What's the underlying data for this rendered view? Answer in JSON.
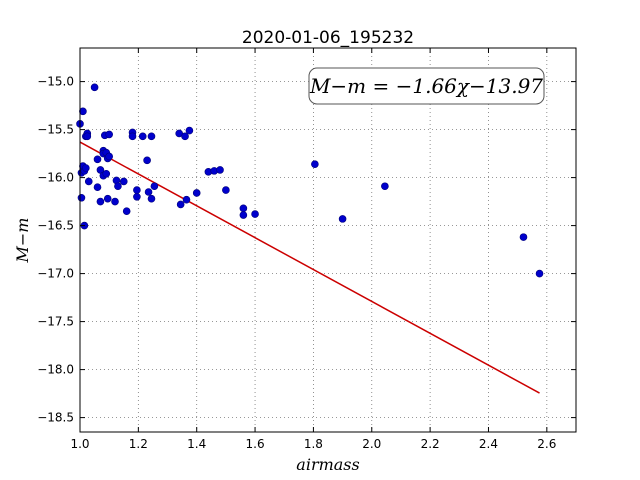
{
  "chart_data": {
    "type": "scatter",
    "title": "2020-01-06_195232",
    "xlabel": "airmass",
    "ylabel": "M−m",
    "xlim": [
      1.0,
      2.7
    ],
    "ylim": [
      -18.65,
      -14.65
    ],
    "x_ticks": [
      1.0,
      1.2,
      1.4,
      1.6,
      1.8,
      2.0,
      2.2,
      2.4,
      2.6
    ],
    "x_tick_labels": [
      "1.0",
      "1.2",
      "1.4",
      "1.6",
      "1.8",
      "2.0",
      "2.2",
      "2.4",
      "2.6"
    ],
    "y_ticks": [
      -15.0,
      -15.5,
      -16.0,
      -16.5,
      -17.0,
      -17.5,
      -18.0,
      -18.5
    ],
    "y_tick_labels": [
      "−15.0",
      "−15.5",
      "−16.0",
      "−16.5",
      "−17.0",
      "−17.5",
      "−18.0",
      "−18.5"
    ],
    "grid": true,
    "point_color": "#0000cc",
    "line_color": "#cc0000",
    "annotation": "M−m = −1.66χ−13.97",
    "annotation_position": "top-right",
    "fit": {
      "slope": -1.66,
      "intercept": -13.97,
      "x_range": [
        1.0,
        2.575
      ]
    },
    "points": [
      [
        1.0,
        -15.44
      ],
      [
        1.005,
        -15.95
      ],
      [
        1.005,
        -16.21
      ],
      [
        1.01,
        -15.31
      ],
      [
        1.01,
        -15.88
      ],
      [
        1.015,
        -15.93
      ],
      [
        1.015,
        -16.5
      ],
      [
        1.02,
        -15.57
      ],
      [
        1.02,
        -15.9
      ],
      [
        1.025,
        -15.54
      ],
      [
        1.025,
        -15.57
      ],
      [
        1.03,
        -16.04
      ],
      [
        1.05,
        -15.06
      ],
      [
        1.06,
        -15.81
      ],
      [
        1.06,
        -16.1
      ],
      [
        1.07,
        -15.92
      ],
      [
        1.07,
        -16.25
      ],
      [
        1.08,
        -15.72
      ],
      [
        1.08,
        -15.75
      ],
      [
        1.08,
        -15.98
      ],
      [
        1.085,
        -15.56
      ],
      [
        1.09,
        -15.74
      ],
      [
        1.09,
        -15.96
      ],
      [
        1.095,
        -15.8
      ],
      [
        1.095,
        -16.22
      ],
      [
        1.1,
        -15.55
      ],
      [
        1.1,
        -15.78
      ],
      [
        1.12,
        -16.25
      ],
      [
        1.125,
        -16.03
      ],
      [
        1.13,
        -16.09
      ],
      [
        1.15,
        -16.04
      ],
      [
        1.16,
        -16.35
      ],
      [
        1.18,
        -15.53
      ],
      [
        1.18,
        -15.57
      ],
      [
        1.195,
        -16.13
      ],
      [
        1.195,
        -16.2
      ],
      [
        1.215,
        -15.57
      ],
      [
        1.23,
        -15.82
      ],
      [
        1.235,
        -16.15
      ],
      [
        1.245,
        -15.57
      ],
      [
        1.245,
        -16.22
      ],
      [
        1.255,
        -16.09
      ],
      [
        1.34,
        -15.54
      ],
      [
        1.345,
        -16.28
      ],
      [
        1.36,
        -15.57
      ],
      [
        1.365,
        -16.23
      ],
      [
        1.375,
        -15.51
      ],
      [
        1.4,
        -16.16
      ],
      [
        1.44,
        -15.94
      ],
      [
        1.46,
        -15.93
      ],
      [
        1.48,
        -15.92
      ],
      [
        1.5,
        -16.13
      ],
      [
        1.56,
        -16.32
      ],
      [
        1.56,
        -16.39
      ],
      [
        1.6,
        -16.38
      ],
      [
        1.805,
        -15.86
      ],
      [
        1.9,
        -16.43
      ],
      [
        2.045,
        -16.09
      ],
      [
        2.52,
        -16.62
      ],
      [
        2.575,
        -17.0
      ]
    ]
  }
}
